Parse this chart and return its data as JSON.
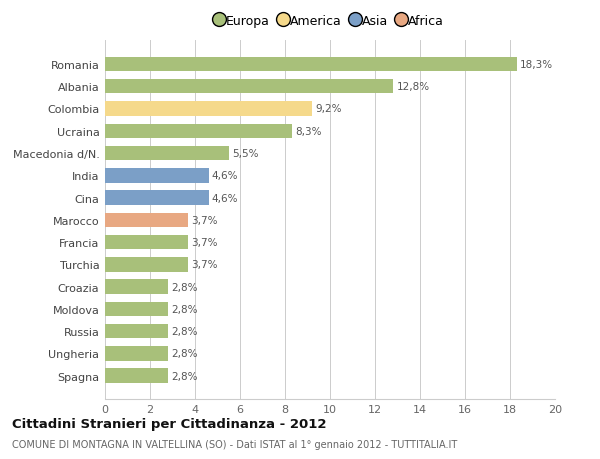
{
  "countries": [
    "Spagna",
    "Ungheria",
    "Russia",
    "Moldova",
    "Croazia",
    "Turchia",
    "Francia",
    "Marocco",
    "Cina",
    "India",
    "Macedonia d/N.",
    "Ucraina",
    "Colombia",
    "Albania",
    "Romania"
  ],
  "values": [
    2.8,
    2.8,
    2.8,
    2.8,
    2.8,
    3.7,
    3.7,
    3.7,
    4.6,
    4.6,
    5.5,
    8.3,
    9.2,
    12.8,
    18.3
  ],
  "labels": [
    "2,8%",
    "2,8%",
    "2,8%",
    "2,8%",
    "2,8%",
    "3,7%",
    "3,7%",
    "3,7%",
    "4,6%",
    "4,6%",
    "5,5%",
    "8,3%",
    "9,2%",
    "12,8%",
    "18,3%"
  ],
  "colors": [
    "#a8c07a",
    "#a8c07a",
    "#a8c07a",
    "#a8c07a",
    "#a8c07a",
    "#a8c07a",
    "#a8c07a",
    "#e8a882",
    "#7b9fc7",
    "#7b9fc7",
    "#a8c07a",
    "#a8c07a",
    "#f5d98b",
    "#a8c07a",
    "#a8c07a"
  ],
  "continent_colors": {
    "Europa": "#a8c07a",
    "America": "#f5d98b",
    "Asia": "#7b9fc7",
    "Africa": "#e8a882"
  },
  "title": "Cittadini Stranieri per Cittadinanza - 2012",
  "subtitle": "COMUNE DI MONTAGNA IN VALTELLINA (SO) - Dati ISTAT al 1° gennaio 2012 - TUTTITALIA.IT",
  "xlim": [
    0,
    20
  ],
  "xticks": [
    0,
    2,
    4,
    6,
    8,
    10,
    12,
    14,
    16,
    18,
    20
  ],
  "background_color": "#ffffff",
  "grid_color": "#cccccc"
}
